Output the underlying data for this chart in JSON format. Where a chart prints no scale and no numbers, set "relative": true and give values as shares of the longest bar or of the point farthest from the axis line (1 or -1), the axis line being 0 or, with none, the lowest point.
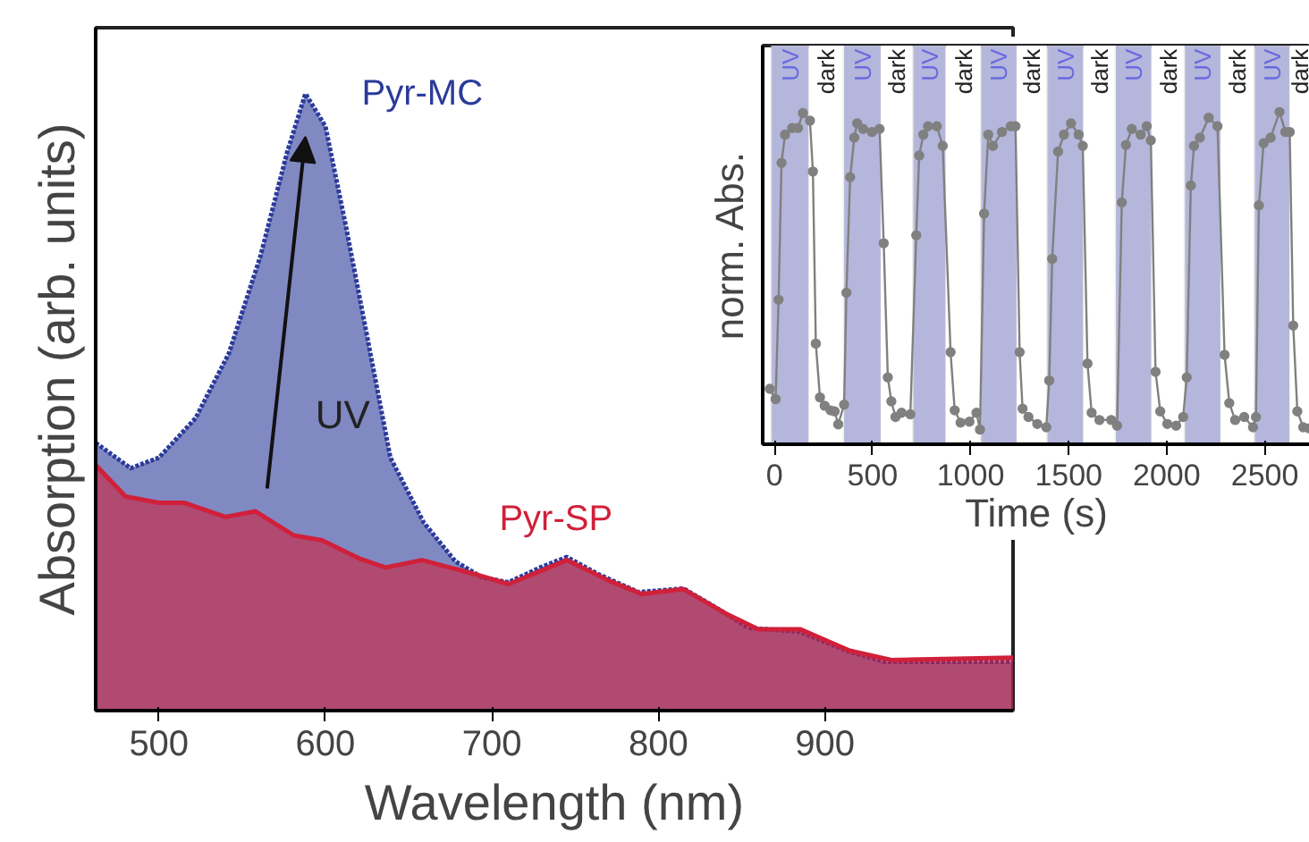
{
  "chart_data": [
    {
      "type": "area",
      "relative": true,
      "xlabel": "Wavelength (nm)",
      "ylabel": "Absorption (arb. units)",
      "xlim": [
        462,
        1013
      ],
      "xticks": [
        500,
        600,
        700,
        800,
        900
      ],
      "grid": false,
      "annotations": [
        "UV"
      ],
      "series": [
        {
          "name": "Pyr-MC",
          "color": "#2b3a9a",
          "line_style": "dashed",
          "x": [
            462,
            483,
            500,
            522,
            542,
            561,
            577,
            588,
            600,
            612,
            624,
            639,
            659,
            678,
            694,
            710,
            729,
            745,
            764,
            788,
            815,
            834,
            854,
            885,
            913,
            936,
            971,
            1013
          ],
          "values": [
            0.434,
            0.393,
            0.41,
            0.474,
            0.579,
            0.737,
            0.905,
            1.0,
            0.947,
            0.789,
            0.621,
            0.41,
            0.305,
            0.242,
            0.216,
            0.208,
            0.232,
            0.249,
            0.221,
            0.192,
            0.198,
            0.168,
            0.134,
            0.128,
            0.097,
            0.079,
            0.079,
            0.079
          ]
        },
        {
          "name": "Pyr-SP",
          "color": "#d0203a",
          "line_style": "solid",
          "x": [
            462,
            480,
            500,
            515,
            540,
            558,
            581,
            598,
            620,
            636,
            658,
            690,
            710,
            745,
            770,
            790,
            815,
            840,
            860,
            885,
            915,
            940,
            1013
          ],
          "values": [
            0.398,
            0.347,
            0.337,
            0.337,
            0.314,
            0.323,
            0.284,
            0.276,
            0.247,
            0.232,
            0.244,
            0.221,
            0.205,
            0.244,
            0.211,
            0.189,
            0.197,
            0.158,
            0.132,
            0.132,
            0.097,
            0.082,
            0.086
          ]
        }
      ]
    },
    {
      "type": "line",
      "relative": true,
      "xlabel": "Time (s)",
      "ylabel": "norm. Abs.",
      "xlim": [
        -60,
        2730
      ],
      "xticks": [
        0,
        500,
        1000,
        1500,
        2000,
        2500
      ],
      "grid": false,
      "marker": "circle",
      "bands": [
        {
          "axis": "x",
          "from": -15,
          "to": 175,
          "label": "UV",
          "color": "#b4b6dc"
        },
        {
          "axis": "x",
          "from": 175,
          "to": 355,
          "label": "dark",
          "color": "#ffffff"
        },
        {
          "axis": "x",
          "from": 355,
          "to": 542,
          "label": "UV",
          "color": "#b4b6dc"
        },
        {
          "axis": "x",
          "from": 542,
          "to": 708,
          "label": "dark",
          "color": "#ffffff"
        },
        {
          "axis": "x",
          "from": 708,
          "to": 873,
          "label": "UV",
          "color": "#b4b6dc"
        },
        {
          "axis": "x",
          "from": 873,
          "to": 1054,
          "label": "dark",
          "color": "#ffffff"
        },
        {
          "axis": "x",
          "from": 1054,
          "to": 1235,
          "label": "UV",
          "color": "#b4b6dc"
        },
        {
          "axis": "x",
          "from": 1235,
          "to": 1392,
          "label": "dark",
          "color": "#ffffff"
        },
        {
          "axis": "x",
          "from": 1392,
          "to": 1575,
          "label": "UV",
          "color": "#b4b6dc"
        },
        {
          "axis": "x",
          "from": 1575,
          "to": 1741,
          "label": "dark",
          "color": "#ffffff"
        },
        {
          "axis": "x",
          "from": 1741,
          "to": 1922,
          "label": "UV",
          "color": "#b4b6dc"
        },
        {
          "axis": "x",
          "from": 1922,
          "to": 2093,
          "label": "dark",
          "color": "#ffffff"
        },
        {
          "axis": "x",
          "from": 2093,
          "to": 2274,
          "label": "UV",
          "color": "#b4b6dc"
        },
        {
          "axis": "x",
          "from": 2274,
          "to": 2449,
          "label": "dark",
          "color": "#ffffff"
        },
        {
          "axis": "x",
          "from": 2449,
          "to": 2627,
          "label": "UV",
          "color": "#b4b6dc"
        },
        {
          "axis": "x",
          "from": 2627,
          "to": 2730,
          "label": "dark",
          "color": "#ffffff"
        }
      ],
      "series": [
        {
          "color": "#808080",
          "x": [
            -24,
            6,
            21,
            36,
            54,
            90,
            120,
            145,
            181,
            196,
            211,
            232,
            256,
            286,
            307,
            325,
            355,
            367,
            386,
            407,
            422,
            452,
            497,
            536,
            557,
            578,
            596,
            617,
            648,
            693,
            723,
            738,
            759,
            783,
            828,
            858,
            898,
            919,
            949,
            994,
            1030,
            1048,
            1069,
            1090,
            1114,
            1160,
            1205,
            1229,
            1250,
            1265,
            1295,
            1340,
            1386,
            1401,
            1416,
            1446,
            1476,
            1512,
            1551,
            1572,
            1596,
            1617,
            1657,
            1717,
            1747,
            1771,
            1792,
            1822,
            1867,
            1898,
            1919,
            1943,
            1967,
            2003,
            2048,
            2084,
            2102,
            2123,
            2139,
            2169,
            2214,
            2259,
            2295,
            2319,
            2349,
            2395,
            2440,
            2455,
            2470,
            2494,
            2530,
            2575,
            2605,
            2627,
            2645,
            2666,
            2696,
            2726
          ],
          "values": [
            0.167,
            0.136,
            0.435,
            0.847,
            0.932,
            0.952,
            0.952,
            0.997,
            0.974,
            0.821,
            0.303,
            0.141,
            0.116,
            0.102,
            0.099,
            0.06,
            0.119,
            0.456,
            0.804,
            0.923,
            0.966,
            0.949,
            0.94,
            0.949,
            0.605,
            0.201,
            0.129,
            0.082,
            0.095,
            0.09,
            0.629,
            0.869,
            0.932,
            0.957,
            0.957,
            0.898,
            0.277,
            0.102,
            0.065,
            0.068,
            0.095,
            0.044,
            0.694,
            0.932,
            0.898,
            0.94,
            0.957,
            0.957,
            0.277,
            0.107,
            0.082,
            0.061,
            0.051,
            0.192,
            0.558,
            0.881,
            0.932,
            0.966,
            0.932,
            0.898,
            0.243,
            0.095,
            0.073,
            0.073,
            0.056,
            0.728,
            0.901,
            0.949,
            0.932,
            0.957,
            0.915,
            0.218,
            0.099,
            0.061,
            0.056,
            0.082,
            0.201,
            0.779,
            0.898,
            0.923,
            0.983,
            0.957,
            0.269,
            0.124,
            0.073,
            0.082,
            0.051,
            0.082,
            0.719,
            0.906,
            0.923,
            1.0,
            0.94,
            0.94,
            0.357,
            0.099,
            0.051,
            0.048
          ]
        }
      ]
    }
  ]
}
